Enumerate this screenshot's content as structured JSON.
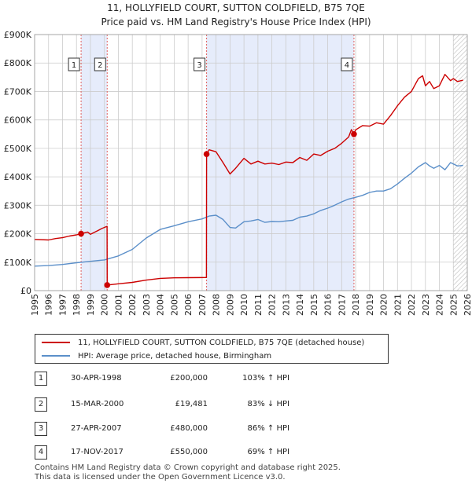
{
  "title_line1": "11, HOLLYFIELD COURT, SUTTON COLDFIELD, B75 7QE",
  "title_line2": "Price paid vs. HM Land Registry's House Price Index (HPI)",
  "legend": {
    "property_label": "11, HOLLYFIELD COURT, SUTTON COLDFIELD, B75 7QE (detached house)",
    "hpi_label": "HPI: Average price, detached house, Birmingham"
  },
  "colors": {
    "property": "#cc0000",
    "hpi": "#5b8fc9",
    "shade": "#e6ecfb",
    "vline": "#e06060",
    "grid": "#cccccc"
  },
  "sales": [
    {
      "num": "1",
      "date": "30-APR-1998",
      "price": "£200,000",
      "hpi": "103% ↑ HPI"
    },
    {
      "num": "2",
      "date": "15-MAR-2000",
      "price": "£19,481",
      "hpi": "83% ↓ HPI"
    },
    {
      "num": "3",
      "date": "27-APR-2007",
      "price": "£480,000",
      "hpi": "86% ↑ HPI"
    },
    {
      "num": "4",
      "date": "17-NOV-2017",
      "price": "£550,000",
      "hpi": "69% ↑ HPI"
    }
  ],
  "footer_line1": "Contains HM Land Registry data © Crown copyright and database right 2025.",
  "footer_line2": "This data is licensed under the Open Government Licence v3.0.",
  "chart_data": {
    "type": "line",
    "title": "11, HOLLYFIELD COURT, SUTTON COLDFIELD, B75 7QE",
    "subtitle": "Price paid vs. HM Land Registry's House Price Index (HPI)",
    "xlim": [
      1995,
      2026
    ],
    "ylim": [
      0,
      900000
    ],
    "x_ticks": [
      1995,
      1996,
      1997,
      1998,
      1999,
      2000,
      2001,
      2002,
      2003,
      2004,
      2005,
      2006,
      2007,
      2008,
      2009,
      2010,
      2011,
      2012,
      2013,
      2014,
      2015,
      2016,
      2017,
      2018,
      2019,
      2020,
      2021,
      2022,
      2023,
      2024,
      2025,
      2026
    ],
    "y_ticks": [
      0,
      100000,
      200000,
      300000,
      400000,
      500000,
      600000,
      700000,
      800000,
      900000
    ],
    "y_tick_labels": [
      "£0",
      "£100K",
      "£200K",
      "£300K",
      "£400K",
      "£500K",
      "£600K",
      "£700K",
      "£800K",
      "£900K"
    ],
    "shaded_spans": [
      [
        1998.33,
        2000.2
      ],
      [
        2007.32,
        2017.88
      ]
    ],
    "future_hatch_from": 2025.0,
    "markers": [
      {
        "num": "1",
        "x": 1998.33,
        "y": 200000
      },
      {
        "num": "2",
        "x": 2000.2,
        "y": 19481
      },
      {
        "num": "3",
        "x": 2007.32,
        "y": 480000
      },
      {
        "num": "4",
        "x": 2017.88,
        "y": 550000
      }
    ],
    "series": [
      {
        "name": "11, HOLLYFIELD COURT, SUTTON COLDFIELD, B75 7QE (detached house)",
        "x": [
          1995.0,
          1996.0,
          1996.5,
          1997.0,
          1997.5,
          1998.0,
          1998.33,
          1998.8,
          1999.0,
          1999.5,
          1999.8,
          2000.19,
          2000.2,
          2001.0,
          2002.0,
          2003.0,
          2004.0,
          2005.0,
          2006.0,
          2007.31,
          2007.32,
          2007.5,
          2008.0,
          2008.5,
          2009.0,
          2009.4,
          2010.0,
          2010.5,
          2011.0,
          2011.5,
          2012.0,
          2012.5,
          2013.0,
          2013.5,
          2014.0,
          2014.5,
          2015.0,
          2015.5,
          2016.0,
          2016.5,
          2017.0,
          2017.5,
          2017.7,
          2017.88,
          2018.0,
          2018.5,
          2019.0,
          2019.5,
          2020.0,
          2020.5,
          2021.0,
          2021.5,
          2022.0,
          2022.5,
          2022.8,
          2023.0,
          2023.3,
          2023.6,
          2024.0,
          2024.4,
          2024.8,
          2025.0,
          2025.3,
          2025.7
        ],
        "values": [
          180000,
          178000,
          183000,
          186000,
          192000,
          196000,
          200000,
          206000,
          198000,
          210000,
          218000,
          226000,
          19481,
          24000,
          29000,
          37000,
          43000,
          45000,
          45500,
          46000,
          480000,
          495000,
          488000,
          450000,
          410000,
          430000,
          465000,
          445000,
          455000,
          445000,
          448000,
          443000,
          452000,
          450000,
          468000,
          458000,
          480000,
          475000,
          490000,
          500000,
          518000,
          540000,
          566000,
          550000,
          565000,
          580000,
          578000,
          590000,
          585000,
          615000,
          650000,
          680000,
          700000,
          745000,
          755000,
          720000,
          735000,
          710000,
          720000,
          760000,
          738000,
          745000,
          735000,
          740000
        ]
      },
      {
        "name": "HPI: Average price, detached house, Birmingham",
        "x": [
          1995.0,
          1996.0,
          1997.0,
          1998.0,
          1999.0,
          2000.0,
          2001.0,
          2002.0,
          2003.0,
          2004.0,
          2005.0,
          2006.0,
          2007.0,
          2007.5,
          2008.0,
          2008.5,
          2009.0,
          2009.4,
          2010.0,
          2010.5,
          2011.0,
          2011.5,
          2012.0,
          2012.5,
          2013.0,
          2013.5,
          2014.0,
          2014.5,
          2015.0,
          2015.5,
          2016.0,
          2016.5,
          2017.0,
          2017.5,
          2018.0,
          2018.5,
          2019.0,
          2019.5,
          2020.0,
          2020.5,
          2021.0,
          2021.5,
          2022.0,
          2022.5,
          2023.0,
          2023.3,
          2023.6,
          2024.0,
          2024.4,
          2024.8,
          2025.0,
          2025.3,
          2025.7
        ],
        "values": [
          86000,
          88000,
          92000,
          98000,
          103000,
          108000,
          122000,
          145000,
          185000,
          215000,
          228000,
          242000,
          252000,
          262000,
          265000,
          250000,
          222000,
          220000,
          242000,
          245000,
          250000,
          240000,
          243000,
          242000,
          245000,
          247000,
          258000,
          262000,
          270000,
          282000,
          290000,
          300000,
          312000,
          322000,
          328000,
          335000,
          345000,
          350000,
          350000,
          358000,
          375000,
          395000,
          413000,
          435000,
          450000,
          438000,
          430000,
          440000,
          425000,
          450000,
          445000,
          438000,
          440000
        ]
      }
    ]
  }
}
